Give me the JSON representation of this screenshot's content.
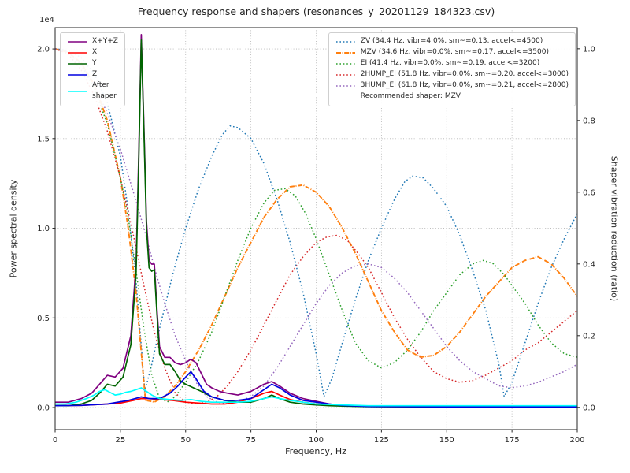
{
  "title": "Frequency response and shapers (resonances_y_20201129_184323.csv)",
  "axes": {
    "x_label": "Frequency, Hz",
    "left_y_label": "Power spectral density",
    "right_y_label": "Shaper vibration reduction (ratio)",
    "offset_text": "1e4",
    "x_tick_values": [
      0,
      25,
      50,
      75,
      100,
      125,
      150,
      175,
      200
    ],
    "x_tick_labels": [
      "0",
      "25",
      "50",
      "75",
      "100",
      "125",
      "150",
      "175",
      "200"
    ],
    "left_y_tick_values": [
      0.0,
      0.5,
      1.0,
      1.5,
      2.0
    ],
    "left_y_tick_labels": [
      "0.0",
      "0.5",
      "1.0",
      "1.5",
      "2.0"
    ],
    "right_y_tick_values": [
      0.0,
      0.2,
      0.4,
      0.6,
      0.8,
      1.0
    ],
    "right_y_tick_labels": [
      "0.0",
      "0.2",
      "0.4",
      "0.6",
      "0.8",
      "1.0"
    ]
  },
  "chart_data": {
    "type": "line",
    "xlim": [
      0,
      200
    ],
    "left_ylim": [
      -0.123,
      2.119
    ],
    "right_ylim": [
      -0.062,
      1.059
    ],
    "left_unit_multiplier": "1e4",
    "grid": true,
    "recommended": "Recommended shaper: MZV",
    "psd_series": [
      {
        "name": "x-y-z",
        "label": "X+Y+Z",
        "color": "#800080",
        "style": "solid",
        "x": [
          0,
          5,
          10,
          14,
          17,
          20,
          23,
          26,
          29,
          31,
          32,
          33,
          34,
          35,
          36,
          37,
          38,
          39,
          40,
          42,
          44,
          46,
          48,
          50,
          52,
          54,
          56,
          58,
          60,
          63,
          66,
          70,
          75,
          80,
          83,
          86,
          90,
          95,
          100,
          105,
          110,
          120,
          140,
          160,
          180,
          200
        ],
        "y": [
          0.03,
          0.03,
          0.05,
          0.08,
          0.13,
          0.18,
          0.17,
          0.22,
          0.4,
          0.8,
          1.4,
          2.08,
          1.58,
          1.04,
          0.82,
          0.8,
          0.8,
          0.55,
          0.34,
          0.28,
          0.28,
          0.25,
          0.24,
          0.25,
          0.27,
          0.25,
          0.19,
          0.13,
          0.11,
          0.09,
          0.08,
          0.07,
          0.09,
          0.13,
          0.145,
          0.12,
          0.08,
          0.05,
          0.035,
          0.02,
          0.012,
          0.008,
          0.006,
          0.005,
          0.004,
          0.004
        ]
      },
      {
        "name": "x",
        "label": "X",
        "color": "#ff0000",
        "style": "solid",
        "x": [
          0,
          10,
          20,
          25,
          30,
          33,
          36,
          40,
          45,
          50,
          55,
          60,
          65,
          70,
          75,
          80,
          83,
          86,
          90,
          95,
          100,
          110,
          120,
          150,
          200
        ],
        "y": [
          0.01,
          0.012,
          0.02,
          0.025,
          0.04,
          0.05,
          0.05,
          0.045,
          0.04,
          0.03,
          0.025,
          0.02,
          0.02,
          0.03,
          0.05,
          0.08,
          0.09,
          0.07,
          0.045,
          0.03,
          0.02,
          0.01,
          0.006,
          0.004,
          0.003
        ]
      },
      {
        "name": "y",
        "label": "Y",
        "color": "#006400",
        "style": "solid",
        "x": [
          0,
          5,
          10,
          14,
          17,
          20,
          23,
          26,
          29,
          31,
          32,
          33,
          34,
          35,
          36,
          37,
          38,
          39,
          40,
          42,
          44,
          46,
          48,
          50,
          53,
          56,
          60,
          65,
          70,
          75,
          80,
          83,
          86,
          90,
          95,
          100,
          105,
          110,
          120,
          140,
          160,
          180,
          200
        ],
        "y": [
          0.01,
          0.01,
          0.02,
          0.04,
          0.08,
          0.13,
          0.12,
          0.17,
          0.35,
          0.75,
          1.35,
          2.05,
          1.55,
          1.0,
          0.78,
          0.76,
          0.77,
          0.52,
          0.3,
          0.24,
          0.24,
          0.2,
          0.15,
          0.13,
          0.11,
          0.09,
          0.06,
          0.04,
          0.03,
          0.03,
          0.05,
          0.07,
          0.05,
          0.03,
          0.02,
          0.015,
          0.01,
          0.008,
          0.005,
          0.004,
          0.003,
          0.003,
          0.002
        ]
      },
      {
        "name": "z",
        "label": "Z",
        "color": "#0000e0",
        "style": "solid",
        "x": [
          0,
          10,
          20,
          28,
          33,
          36,
          40,
          44,
          47,
          50,
          52,
          54,
          57,
          60,
          65,
          70,
          75,
          80,
          83,
          86,
          90,
          95,
          100,
          105,
          110,
          120,
          150,
          200
        ],
        "y": [
          0.01,
          0.012,
          0.02,
          0.04,
          0.06,
          0.05,
          0.05,
          0.08,
          0.12,
          0.17,
          0.2,
          0.16,
          0.09,
          0.06,
          0.04,
          0.04,
          0.05,
          0.1,
          0.13,
          0.11,
          0.07,
          0.04,
          0.03,
          0.02,
          0.012,
          0.006,
          0.004,
          0.003
        ]
      },
      {
        "name": "after-shaper",
        "label": "After\nshaper",
        "color": "#00ffff",
        "style": "solid",
        "x": [
          0,
          4,
          8,
          12,
          15,
          17,
          19,
          21,
          23,
          25,
          27,
          29,
          31,
          33,
          35,
          37,
          40,
          44,
          48,
          52,
          56,
          60,
          65,
          70,
          75,
          80,
          83,
          86,
          90,
          95,
          100,
          110,
          120,
          140,
          160,
          180,
          200
        ],
        "y": [
          0.02,
          0.02,
          0.03,
          0.05,
          0.07,
          0.09,
          0.1,
          0.085,
          0.07,
          0.075,
          0.085,
          0.09,
          0.1,
          0.11,
          0.09,
          0.07,
          0.05,
          0.045,
          0.04,
          0.045,
          0.035,
          0.03,
          0.03,
          0.03,
          0.035,
          0.05,
          0.06,
          0.05,
          0.04,
          0.03,
          0.02,
          0.015,
          0.01,
          0.01,
          0.01,
          0.01,
          0.01
        ]
      }
    ],
    "shaper_series": [
      {
        "name": "zv",
        "label": "ZV (34.4 Hz, vibr=4.0%, sm~=0.13, accel<=4500)",
        "color": "#1f77b4",
        "style": "dotted",
        "x": [
          0,
          5,
          10,
          15,
          20,
          25,
          28,
          31,
          34.4,
          37,
          40,
          45,
          50,
          55,
          60,
          64,
          67,
          70,
          75,
          80,
          85,
          90,
          95,
          100,
          103,
          106,
          110,
          115,
          120,
          125,
          130,
          134,
          137,
          141,
          145,
          150,
          155,
          160,
          165,
          170,
          172,
          175,
          180,
          185,
          190,
          195,
          200
        ],
        "y": [
          1.0,
          0.995,
          0.975,
          0.93,
          0.85,
          0.7,
          0.55,
          0.35,
          0.045,
          0.12,
          0.22,
          0.37,
          0.5,
          0.61,
          0.7,
          0.76,
          0.785,
          0.78,
          0.75,
          0.68,
          0.58,
          0.46,
          0.32,
          0.15,
          0.03,
          0.08,
          0.18,
          0.3,
          0.41,
          0.5,
          0.58,
          0.63,
          0.645,
          0.64,
          0.61,
          0.56,
          0.48,
          0.38,
          0.27,
          0.12,
          0.03,
          0.07,
          0.18,
          0.29,
          0.39,
          0.47,
          0.54
        ]
      },
      {
        "name": "mzv",
        "label": "MZV (34.6 Hz, vibr=0.0%, sm~=0.17, accel<=3500)",
        "color": "#ff7f0e",
        "style": "dashdot",
        "x": [
          0,
          5,
          10,
          15,
          20,
          25,
          28,
          31,
          34.6,
          38,
          42,
          46,
          50,
          55,
          60,
          65,
          70,
          75,
          80,
          85,
          90,
          95,
          100,
          105,
          110,
          115,
          120,
          125,
          130,
          135,
          140,
          145,
          150,
          155,
          160,
          165,
          170,
          175,
          180,
          185,
          190,
          195,
          200
        ],
        "y": [
          1.0,
          0.99,
          0.96,
          0.9,
          0.8,
          0.64,
          0.5,
          0.32,
          0.02,
          0.015,
          0.03,
          0.06,
          0.1,
          0.16,
          0.23,
          0.31,
          0.39,
          0.46,
          0.53,
          0.58,
          0.615,
          0.62,
          0.6,
          0.56,
          0.5,
          0.43,
          0.35,
          0.27,
          0.21,
          0.16,
          0.14,
          0.145,
          0.17,
          0.21,
          0.26,
          0.31,
          0.35,
          0.39,
          0.41,
          0.42,
          0.4,
          0.36,
          0.31
        ]
      },
      {
        "name": "ei",
        "label": "EI (41.4 Hz, vibr=0.0%, sm~=0.19, accel<=3200)",
        "color": "#2ca02c",
        "style": "dotted",
        "x": [
          0,
          5,
          10,
          15,
          20,
          25,
          28,
          31,
          34,
          37,
          40,
          43,
          46,
          50,
          55,
          60,
          65,
          70,
          75,
          80,
          84,
          88,
          92,
          96,
          100,
          105,
          110,
          115,
          120,
          125,
          130,
          135,
          140,
          145,
          150,
          155,
          160,
          164,
          168,
          172,
          176,
          180,
          185,
          190,
          195,
          200
        ],
        "y": [
          1.0,
          0.99,
          0.955,
          0.89,
          0.79,
          0.64,
          0.53,
          0.38,
          0.22,
          0.09,
          0.025,
          0.015,
          0.03,
          0.07,
          0.13,
          0.21,
          0.31,
          0.41,
          0.5,
          0.57,
          0.605,
          0.61,
          0.59,
          0.54,
          0.47,
          0.37,
          0.27,
          0.18,
          0.13,
          0.11,
          0.125,
          0.16,
          0.21,
          0.27,
          0.32,
          0.37,
          0.4,
          0.41,
          0.4,
          0.37,
          0.33,
          0.29,
          0.23,
          0.18,
          0.15,
          0.14
        ]
      },
      {
        "name": "2hump-ei",
        "label": "2HUMP_EI (51.8 Hz, vibr=0.0%, sm~=0.20, accel<=3000)",
        "color": "#d62728",
        "style": "dotted",
        "x": [
          0,
          5,
          10,
          15,
          20,
          25,
          30,
          34,
          38,
          42,
          46,
          50,
          54,
          58,
          62,
          66,
          70,
          75,
          80,
          85,
          90,
          95,
          100,
          104,
          108,
          112,
          116,
          120,
          125,
          130,
          135,
          140,
          145,
          150,
          155,
          160,
          165,
          170,
          175,
          180,
          185,
          190,
          195,
          200
        ],
        "y": [
          1.0,
          0.985,
          0.94,
          0.87,
          0.77,
          0.64,
          0.48,
          0.34,
          0.21,
          0.11,
          0.04,
          0.015,
          0.01,
          0.015,
          0.03,
          0.06,
          0.1,
          0.16,
          0.23,
          0.3,
          0.37,
          0.42,
          0.46,
          0.475,
          0.48,
          0.465,
          0.43,
          0.39,
          0.32,
          0.25,
          0.19,
          0.14,
          0.1,
          0.08,
          0.07,
          0.075,
          0.09,
          0.11,
          0.13,
          0.16,
          0.18,
          0.21,
          0.24,
          0.27
        ]
      },
      {
        "name": "3hump-ei",
        "label": "3HUMP_EI (61.8 Hz, vibr=0.0%, sm~=0.21, accel<=2800)",
        "color": "#9467bd",
        "style": "dotted",
        "x": [
          0,
          5,
          10,
          15,
          20,
          25,
          30,
          34,
          38,
          42,
          46,
          50,
          54,
          58,
          62,
          66,
          70,
          75,
          80,
          85,
          90,
          95,
          100,
          105,
          110,
          115,
          120,
          125,
          130,
          135,
          140,
          145,
          150,
          155,
          160,
          165,
          170,
          175,
          180,
          185,
          190,
          195,
          200
        ],
        "y": [
          1.0,
          0.99,
          0.955,
          0.9,
          0.82,
          0.72,
          0.6,
          0.5,
          0.39,
          0.29,
          0.2,
          0.13,
          0.07,
          0.03,
          0.015,
          0.01,
          0.015,
          0.03,
          0.06,
          0.11,
          0.17,
          0.23,
          0.29,
          0.34,
          0.375,
          0.395,
          0.4,
          0.39,
          0.36,
          0.32,
          0.27,
          0.22,
          0.17,
          0.13,
          0.1,
          0.08,
          0.06,
          0.055,
          0.06,
          0.07,
          0.085,
          0.1,
          0.12
        ]
      }
    ]
  }
}
